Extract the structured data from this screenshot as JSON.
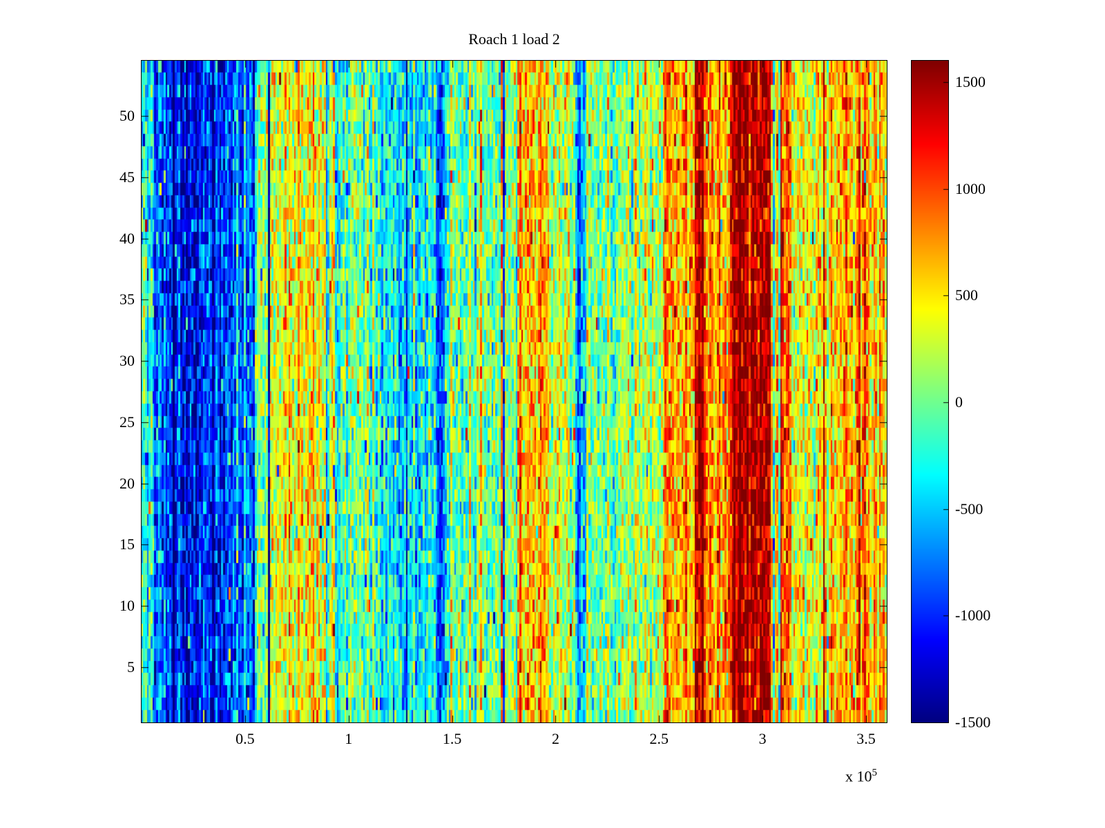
{
  "title": "Roach 1 load 2",
  "chart_data": {
    "type": "heatmap",
    "title": "Roach 1 load 2",
    "colormap": "jet",
    "xlim": [
      0,
      360000
    ],
    "ylim": [
      0.5,
      54.5
    ],
    "rows": 54,
    "columns": 400,
    "x_ticks": [
      {
        "value": 50000,
        "label": "0.5"
      },
      {
        "value": 100000,
        "label": "1"
      },
      {
        "value": 150000,
        "label": "1.5"
      },
      {
        "value": 200000,
        "label": "2"
      },
      {
        "value": 250000,
        "label": "2.5"
      },
      {
        "value": 300000,
        "label": "3"
      },
      {
        "value": 350000,
        "label": "3.5"
      }
    ],
    "x_scale_label": "x 10",
    "x_scale_exp": "5",
    "y_ticks": [
      5,
      10,
      15,
      20,
      25,
      30,
      35,
      40,
      45,
      50
    ],
    "colorbar": {
      "min": -1500,
      "max": 1600,
      "ticks": [
        1500,
        1000,
        500,
        0,
        -500,
        -1000,
        -1500
      ]
    },
    "clim": [
      -1500,
      1600
    ],
    "noise": {
      "cell": 600,
      "column": 320,
      "streak_prob": 0.05,
      "streak_amp": 700,
      "speck_prob": 0.015,
      "speck_amp": 1500
    },
    "bands": [
      {
        "x0": 0,
        "x1": 5000,
        "v": -350
      },
      {
        "x0": 5000,
        "x1": 12000,
        "v": -800
      },
      {
        "x0": 12000,
        "x1": 40000,
        "v": -1050
      },
      {
        "x0": 40000,
        "x1": 55000,
        "v": -800
      },
      {
        "x0": 55000,
        "x1": 62000,
        "v": -100
      },
      {
        "x0": 62000,
        "x1": 93000,
        "v": 430
      },
      {
        "x0": 93000,
        "x1": 96000,
        "v": -500
      },
      {
        "x0": 96000,
        "x1": 110000,
        "v": 0
      },
      {
        "x0": 110000,
        "x1": 142000,
        "v": -320
      },
      {
        "x0": 142000,
        "x1": 147000,
        "v": -750
      },
      {
        "x0": 147000,
        "x1": 160000,
        "v": -250
      },
      {
        "x0": 160000,
        "x1": 182000,
        "v": 50
      },
      {
        "x0": 182000,
        "x1": 197000,
        "v": 650
      },
      {
        "x0": 197000,
        "x1": 210000,
        "v": 250
      },
      {
        "x0": 210000,
        "x1": 215000,
        "v": -600
      },
      {
        "x0": 215000,
        "x1": 235000,
        "v": 60
      },
      {
        "x0": 235000,
        "x1": 252000,
        "v": 260
      },
      {
        "x0": 252000,
        "x1": 267000,
        "v": 700
      },
      {
        "x0": 267000,
        "x1": 272000,
        "v": 1520
      },
      {
        "x0": 272000,
        "x1": 284000,
        "v": 800
      },
      {
        "x0": 284000,
        "x1": 304000,
        "v": 1450
      },
      {
        "x0": 304000,
        "x1": 310000,
        "v": 550
      },
      {
        "x0": 310000,
        "x1": 314000,
        "v": 1000
      },
      {
        "x0": 314000,
        "x1": 330000,
        "v": 420
      },
      {
        "x0": 330000,
        "x1": 360000,
        "v": 600
      }
    ]
  }
}
